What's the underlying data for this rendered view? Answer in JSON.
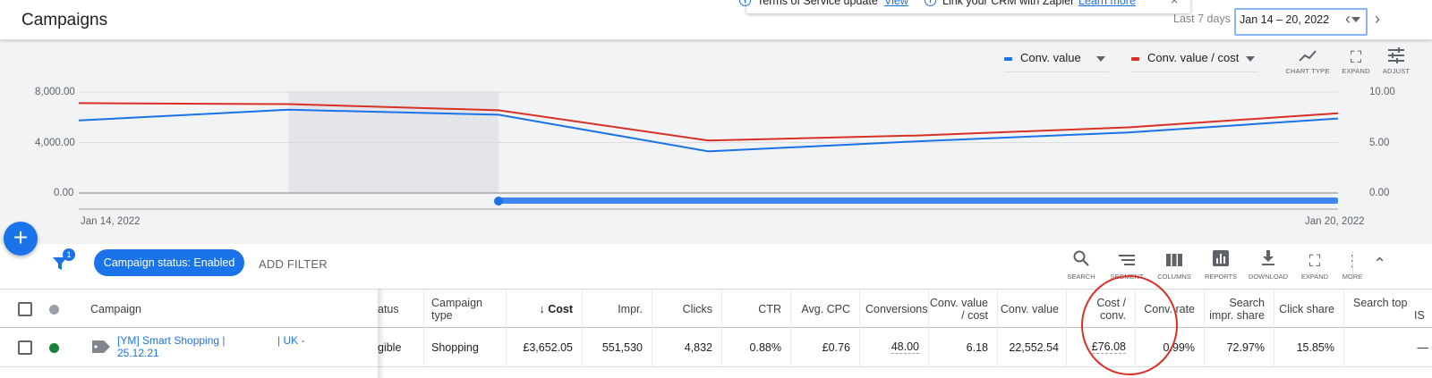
{
  "header": {
    "title": "Campaigns",
    "date_range_label": "Last 7 days",
    "date_range_value": "Jan 14 – 20, 2022"
  },
  "notifications": {
    "tos_text": "Terms of Service update",
    "tos_link": "View",
    "crm_text": "Link your CRM with Zapier",
    "crm_link": "Learn more"
  },
  "chart_toolbar": {
    "metric1": "Conv. value",
    "metric2": "Conv. value / cost",
    "chart_type": "CHART TYPE",
    "expand": "EXPAND",
    "adjust": "ADJUST"
  },
  "colors": {
    "accent": "#1a73e8",
    "series1": "#1a73e8",
    "series2": "#d93025",
    "enabled_dot": "#188038",
    "annotation": "#d93025"
  },
  "chart_data": {
    "type": "line",
    "x": [
      "Jan 14, 2022",
      "Jan 15, 2022",
      "Jan 16, 2022",
      "Jan 17, 2022",
      "Jan 18, 2022",
      "Jan 19, 2022",
      "Jan 20, 2022"
    ],
    "series": [
      {
        "name": "Conv. value",
        "axis": "left",
        "values": [
          5750,
          6600,
          6200,
          3300,
          4100,
          4800,
          5900
        ]
      },
      {
        "name": "Conv. value / cost",
        "axis": "right",
        "values": [
          8.9,
          8.8,
          8.2,
          5.2,
          5.7,
          6.5,
          7.9
        ]
      }
    ],
    "left_ticks": [
      "8,000.00",
      "4,000.00",
      "0.00"
    ],
    "right_ticks": [
      "10.00",
      "5.00",
      "0.00"
    ],
    "ylim_left": [
      0,
      8000
    ],
    "ylim_right": [
      0,
      10
    ],
    "x_start_label": "Jan 14, 2022",
    "x_end_label": "Jan 20, 2022",
    "grid": true,
    "legend": "top-right"
  },
  "filters": {
    "count": "1",
    "chip": "Campaign status: Enabled",
    "add_filter": "ADD FILTER"
  },
  "table_toolbar": {
    "search": "SEARCH",
    "segment": "SEGMENT",
    "columns": "COLUMNS",
    "reports": "REPORTS",
    "download": "DOWNLOAD",
    "expand": "EXPAND",
    "more": "MORE"
  },
  "table": {
    "headers": {
      "campaign": "Campaign",
      "status": "atus",
      "type_line1": "Campaign",
      "type_line2": "type",
      "cost": "Cost",
      "impr": "Impr.",
      "clicks": "Clicks",
      "ctr": "CTR",
      "avg_cpc": "Avg. CPC",
      "conversions": "Conversions",
      "conv_value_cost_1": "Conv. value",
      "conv_value_cost_2": "/ cost",
      "conv_value": "Conv. value",
      "cost_conv_1": "Cost /",
      "cost_conv_2": "conv.",
      "conv_rate": "Conv. rate",
      "search_impr_1": "Search",
      "search_impr_2": "impr. share",
      "click_share": "Click share",
      "search_top_1": "Search top",
      "search_top_2": "IS"
    },
    "row": {
      "campaign_line1a": "[YM] Smart Shopping |",
      "campaign_line1b": "| UK -",
      "campaign_line2": "25.12.21",
      "status": "gible",
      "type": "Shopping",
      "cost": "£3,652.05",
      "impr": "551,530",
      "clicks": "4,832",
      "ctr": "0.88%",
      "avg_cpc": "£0.76",
      "conversions": "48.00",
      "conv_value_cost": "6.18",
      "conv_value": "22,552.54",
      "cost_conv": "£76.08",
      "conv_rate": "0.99%",
      "search_impr": "72.97%",
      "click_share": "15.85%",
      "search_top": "—"
    }
  }
}
